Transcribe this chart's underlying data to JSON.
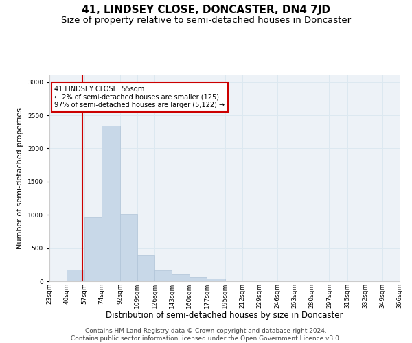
{
  "title": "41, LINDSEY CLOSE, DONCASTER, DN4 7JD",
  "subtitle": "Size of property relative to semi-detached houses in Doncaster",
  "xlabel": "Distribution of semi-detached houses by size in Doncaster",
  "ylabel": "Number of semi-detached properties",
  "bar_color": "#c8d8e8",
  "bar_edge_color": "#b0c4d8",
  "property_line_color": "#cc0000",
  "property_size": 55,
  "annotation_text": "41 LINDSEY CLOSE: 55sqm\n← 2% of semi-detached houses are smaller (125)\n97% of semi-detached houses are larger (5,122) →",
  "annotation_box_color": "#ffffff",
  "annotation_box_edge": "#cc0000",
  "bin_edges": [
    23,
    40,
    57,
    74,
    92,
    109,
    126,
    143,
    160,
    177,
    195,
    212,
    229,
    246,
    263,
    280,
    297,
    315,
    332,
    349,
    366
  ],
  "bin_labels": [
    "23sqm",
    "40sqm",
    "57sqm",
    "74sqm",
    "92sqm",
    "109sqm",
    "126sqm",
    "143sqm",
    "160sqm",
    "177sqm",
    "195sqm",
    "212sqm",
    "229sqm",
    "246sqm",
    "263sqm",
    "280sqm",
    "297sqm",
    "315sqm",
    "332sqm",
    "349sqm",
    "366sqm"
  ],
  "bar_heights": [
    10,
    175,
    960,
    2350,
    1010,
    390,
    170,
    100,
    60,
    40,
    12,
    10,
    5,
    5,
    5,
    5,
    5,
    5,
    5,
    5
  ],
  "ylim": [
    0,
    3100
  ],
  "yticks": [
    0,
    500,
    1000,
    1500,
    2000,
    2500,
    3000
  ],
  "grid_color": "#dce8f0",
  "background_color": "#edf2f7",
  "footer_line1": "Contains HM Land Registry data © Crown copyright and database right 2024.",
  "footer_line2": "Contains public sector information licensed under the Open Government Licence v3.0.",
  "title_fontsize": 11,
  "subtitle_fontsize": 9.5,
  "xlabel_fontsize": 8.5,
  "ylabel_fontsize": 8,
  "tick_fontsize": 6.5,
  "footer_fontsize": 6.5
}
